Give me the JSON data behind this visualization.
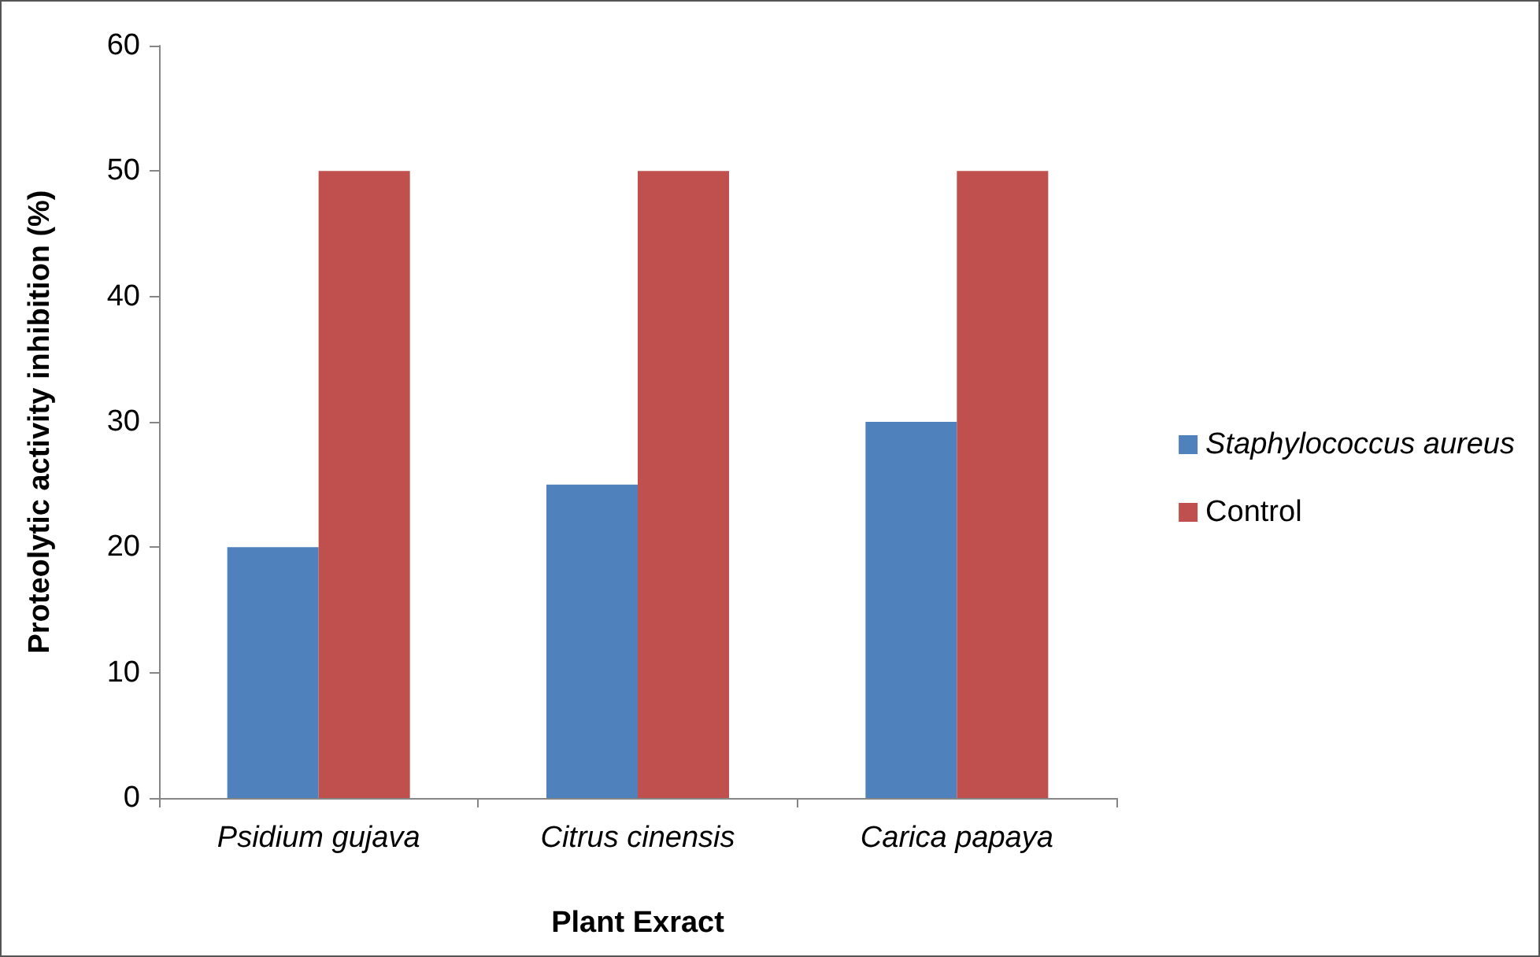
{
  "chart_data": {
    "type": "bar",
    "xlabel": "Plant Exract",
    "ylabel": "Proteolytic activity inhibition (%)",
    "categories": [
      "Psidium gujava",
      "Citrus cinensis",
      "Carica papaya"
    ],
    "series": [
      {
        "name": "Staphylococcus aureus",
        "color": "#4f81bd",
        "values": [
          20,
          25,
          30
        ]
      },
      {
        "name": "Control",
        "color": "#c0504d",
        "values": [
          50,
          50,
          50
        ]
      }
    ],
    "ylim": [
      0,
      60
    ],
    "yticks": [
      0,
      10,
      20,
      30,
      40,
      50,
      60
    ],
    "grid": false,
    "legend": "right"
  }
}
